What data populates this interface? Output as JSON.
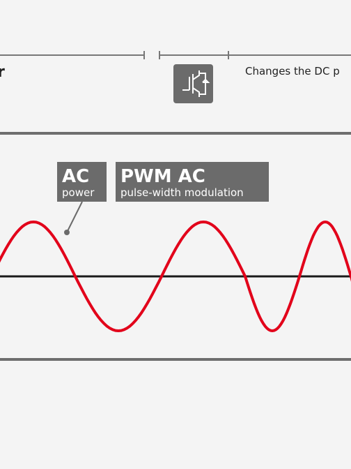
{
  "header": {
    "left_fragment": "r",
    "description": "Changes the DC p"
  },
  "labels": [
    {
      "title": "AC",
      "subtitle": "power"
    },
    {
      "title": "PWM AC",
      "subtitle": "pulse-width modulation"
    }
  ]
}
